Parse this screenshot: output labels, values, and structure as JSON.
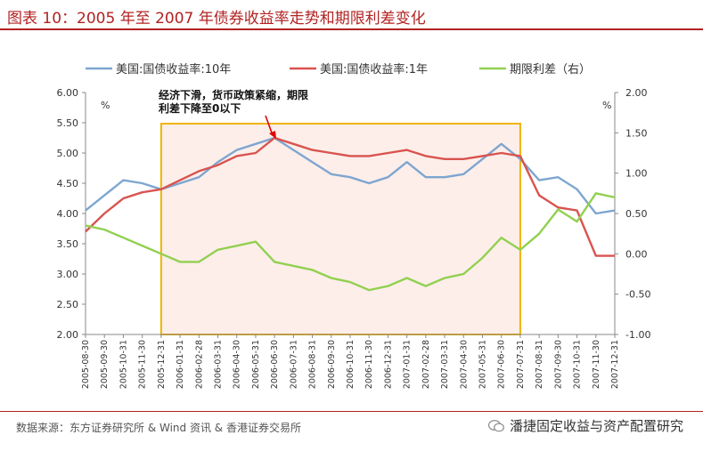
{
  "header": {
    "title": "图表 10：2005 年至 2007 年债券收益率走势和期限利差变化"
  },
  "footer": {
    "source": "数据来源：东方证券研究所 & Wind 资讯 & 香港证券交易所",
    "wechat": "潘捷固定收益与资产配置研究"
  },
  "colors": {
    "series_10y": "#7ea6d0",
    "series_1y": "#d9534f",
    "series_spread": "#92d050",
    "highlight_border": "#f0b400",
    "highlight_fill": "#fdeeea",
    "title": "#b22222"
  },
  "chart_data": {
    "type": "line",
    "title": "",
    "annotation": "经济下滑，货币政策紧缩，期限利差下降至0以下",
    "highlight_range": [
      "2005-12-31",
      "2007-07-31"
    ],
    "left_axis": {
      "unit": "%",
      "min": 2.0,
      "max": 6.0,
      "ticks": [
        "2.00",
        "2.50",
        "3.00",
        "3.50",
        "4.00",
        "4.50",
        "5.00",
        "5.50",
        "6.00"
      ]
    },
    "right_axis": {
      "unit": "%",
      "min": -1.0,
      "max": 2.0,
      "ticks": [
        "-1.00",
        "-0.50",
        "0.00",
        "0.50",
        "1.00",
        "1.50",
        "2.00"
      ]
    },
    "x_ticks": [
      "2005-08-30",
      "2005-09-30",
      "2005-10-31",
      "2005-11-30",
      "2005-12-31",
      "2006-01-31",
      "2006-02-28",
      "2006-03-31",
      "2006-04-30",
      "2006-05-31",
      "2006-06-30",
      "2006-07-31",
      "2006-08-31",
      "2006-09-30",
      "2006-10-31",
      "2006-11-30",
      "2006-12-31",
      "2007-01-31",
      "2007-02-28",
      "2007-03-31",
      "2007-04-30",
      "2007-05-31",
      "2007-06-30",
      "2007-07-31",
      "2007-08-31",
      "2007-09-30",
      "2007-10-31",
      "2007-11-30",
      "2007-12-31"
    ],
    "legend": [
      "美国:国债收益率:10年",
      "美国:国债收益率:1年",
      "期限利差（右）"
    ],
    "legend_position": "top",
    "series": [
      {
        "name": "美国:国债收益率:10年",
        "axis": "left",
        "x": [
          "2005-08-30",
          "2005-09-30",
          "2005-10-31",
          "2005-11-30",
          "2005-12-31",
          "2006-01-31",
          "2006-02-28",
          "2006-03-31",
          "2006-04-30",
          "2006-05-31",
          "2006-06-30",
          "2006-07-31",
          "2006-08-31",
          "2006-09-30",
          "2006-10-31",
          "2006-11-30",
          "2006-12-31",
          "2007-01-31",
          "2007-02-28",
          "2007-03-31",
          "2007-04-30",
          "2007-05-31",
          "2007-06-30",
          "2007-07-31",
          "2007-08-31",
          "2007-09-30",
          "2007-10-31",
          "2007-11-30",
          "2007-12-31"
        ],
        "values": [
          4.05,
          4.3,
          4.55,
          4.5,
          4.4,
          4.5,
          4.6,
          4.85,
          5.05,
          5.15,
          5.25,
          5.05,
          4.85,
          4.65,
          4.6,
          4.5,
          4.6,
          4.85,
          4.6,
          4.6,
          4.65,
          4.9,
          5.15,
          4.9,
          4.55,
          4.6,
          4.4,
          4.0,
          4.05
        ]
      },
      {
        "name": "美国:国债收益率:1年",
        "axis": "left",
        "x": [
          "2005-08-30",
          "2005-09-30",
          "2005-10-31",
          "2005-11-30",
          "2005-12-31",
          "2006-01-31",
          "2006-02-28",
          "2006-03-31",
          "2006-04-30",
          "2006-05-31",
          "2006-06-30",
          "2006-07-31",
          "2006-08-31",
          "2006-09-30",
          "2006-10-31",
          "2006-11-30",
          "2006-12-31",
          "2007-01-31",
          "2007-02-28",
          "2007-03-31",
          "2007-04-30",
          "2007-05-31",
          "2007-06-30",
          "2007-07-31",
          "2007-08-31",
          "2007-09-30",
          "2007-10-31",
          "2007-11-30",
          "2007-12-31"
        ],
        "values": [
          3.7,
          4.0,
          4.25,
          4.35,
          4.4,
          4.55,
          4.7,
          4.8,
          4.95,
          5.0,
          5.25,
          5.15,
          5.05,
          5.0,
          4.95,
          4.95,
          5.0,
          5.05,
          4.95,
          4.9,
          4.9,
          4.95,
          5.0,
          4.95,
          4.3,
          4.1,
          4.05,
          3.3,
          3.3
        ]
      },
      {
        "name": "期限利差（右）",
        "axis": "right",
        "x": [
          "2005-08-30",
          "2005-09-30",
          "2005-10-31",
          "2005-11-30",
          "2005-12-31",
          "2006-01-31",
          "2006-02-28",
          "2006-03-31",
          "2006-04-30",
          "2006-05-31",
          "2006-06-30",
          "2006-07-31",
          "2006-08-31",
          "2006-09-30",
          "2006-10-31",
          "2006-11-30",
          "2006-12-31",
          "2007-01-31",
          "2007-02-28",
          "2007-03-31",
          "2007-04-30",
          "2007-05-31",
          "2007-06-30",
          "2007-07-31",
          "2007-08-31",
          "2007-09-30",
          "2007-10-31",
          "2007-11-30",
          "2007-12-31"
        ],
        "values": [
          0.35,
          0.3,
          0.2,
          0.1,
          0.0,
          -0.1,
          -0.1,
          0.05,
          0.1,
          0.15,
          -0.1,
          -0.15,
          -0.2,
          -0.3,
          -0.35,
          -0.45,
          -0.4,
          -0.3,
          -0.4,
          -0.3,
          -0.25,
          -0.05,
          0.2,
          0.05,
          0.25,
          0.55,
          0.4,
          0.75,
          0.7
        ]
      }
    ]
  }
}
